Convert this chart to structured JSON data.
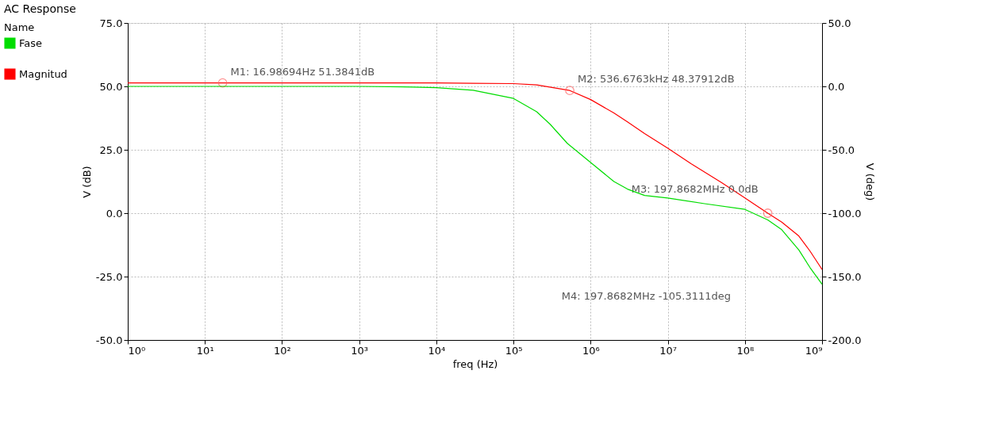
{
  "chart_data": {
    "type": "line",
    "title": "AC Response",
    "xlabel": "freq (Hz)",
    "ylabel": "V (dB)",
    "y2label": "V (deg)",
    "legend_title": "Name",
    "legend": "left",
    "grid": true,
    "log": "x",
    "marker": "none",
    "line_style": "solid",
    "xlim": [
      1,
      1000000000
    ],
    "xticks": [
      {
        "value": 1,
        "label": "10⁰"
      },
      {
        "value": 10,
        "label": "10¹"
      },
      {
        "value": 100,
        "label": "10²"
      },
      {
        "value": 1000,
        "label": "10³"
      },
      {
        "value": 10000,
        "label": "10⁴"
      },
      {
        "value": 100000,
        "label": "10⁵"
      },
      {
        "value": 1000000,
        "label": "10⁶"
      },
      {
        "value": 10000000,
        "label": "10⁷"
      },
      {
        "value": 100000000,
        "label": "10⁸"
      },
      {
        "value": 1000000000,
        "label": "10⁹"
      }
    ],
    "ylim": [
      -50,
      75
    ],
    "yticks": [
      {
        "value": -50,
        "label": "-50.0"
      },
      {
        "value": -25,
        "label": "-25.0"
      },
      {
        "value": 0,
        "label": "0.0"
      },
      {
        "value": 25,
        "label": "25.0"
      },
      {
        "value": 50,
        "label": "50.0"
      },
      {
        "value": 75,
        "label": "75.0"
      }
    ],
    "y2lim": [
      -200,
      50
    ],
    "y2ticks": [
      {
        "value": -200,
        "label": "-200.0"
      },
      {
        "value": -150,
        "label": "-150.0"
      },
      {
        "value": -100,
        "label": "-100.0"
      },
      {
        "value": -50,
        "label": "-50.0"
      },
      {
        "value": 0,
        "label": "0.0"
      },
      {
        "value": 50,
        "label": "50.0"
      }
    ],
    "series": [
      {
        "name": "Fase",
        "color": "#00dd00",
        "axis": "y2",
        "x": [
          1,
          1000,
          5000,
          10000,
          30000,
          100000,
          200000,
          300000,
          500000,
          1000000,
          2000000,
          3000000,
          5000000,
          10000000,
          30000000,
          100000000,
          197868200,
          300000000,
          500000000,
          700000000,
          1000000000
        ],
        "values": [
          0,
          0,
          -0.5,
          -1,
          -3,
          -9.5,
          -20,
          -30,
          -45,
          -60,
          -75,
          -81,
          -86,
          -88,
          -92.5,
          -97,
          -105.3111,
          -113,
          -129,
          -143,
          -156
        ]
      },
      {
        "name": "Magnitud",
        "color": "#ff0000",
        "x": [
          1,
          16.98694,
          1000,
          10000,
          30000,
          100000,
          200000,
          536676.3,
          1000000,
          2000000,
          3000000,
          5000000,
          10000000,
          20000000,
          50000000,
          100000000,
          197868200,
          300000000,
          500000000,
          700000000,
          1000000000
        ],
        "values": [
          51.38,
          51.3841,
          51.38,
          51.35,
          51.2,
          51.1,
          50.6,
          48.37912,
          44.8,
          39.5,
          36,
          31.4,
          25.6,
          19.5,
          12,
          6,
          0,
          -3.5,
          -9,
          -15,
          -22.2
        ]
      }
    ],
    "annotations": [
      {
        "text": "M1: 16.98694Hz 51.3841dB",
        "x": 16.98694,
        "y": 51.3841
      },
      {
        "text": "M2: 536.6763kHz 48.37912dB",
        "x": 536676.3,
        "y": 48.37912
      },
      {
        "text": "M3: 197.8682MHz 0.0dB",
        "x": 197868200,
        "y": 0
      },
      "M4: 197.8682MHz -105.3111deg"
    ]
  }
}
